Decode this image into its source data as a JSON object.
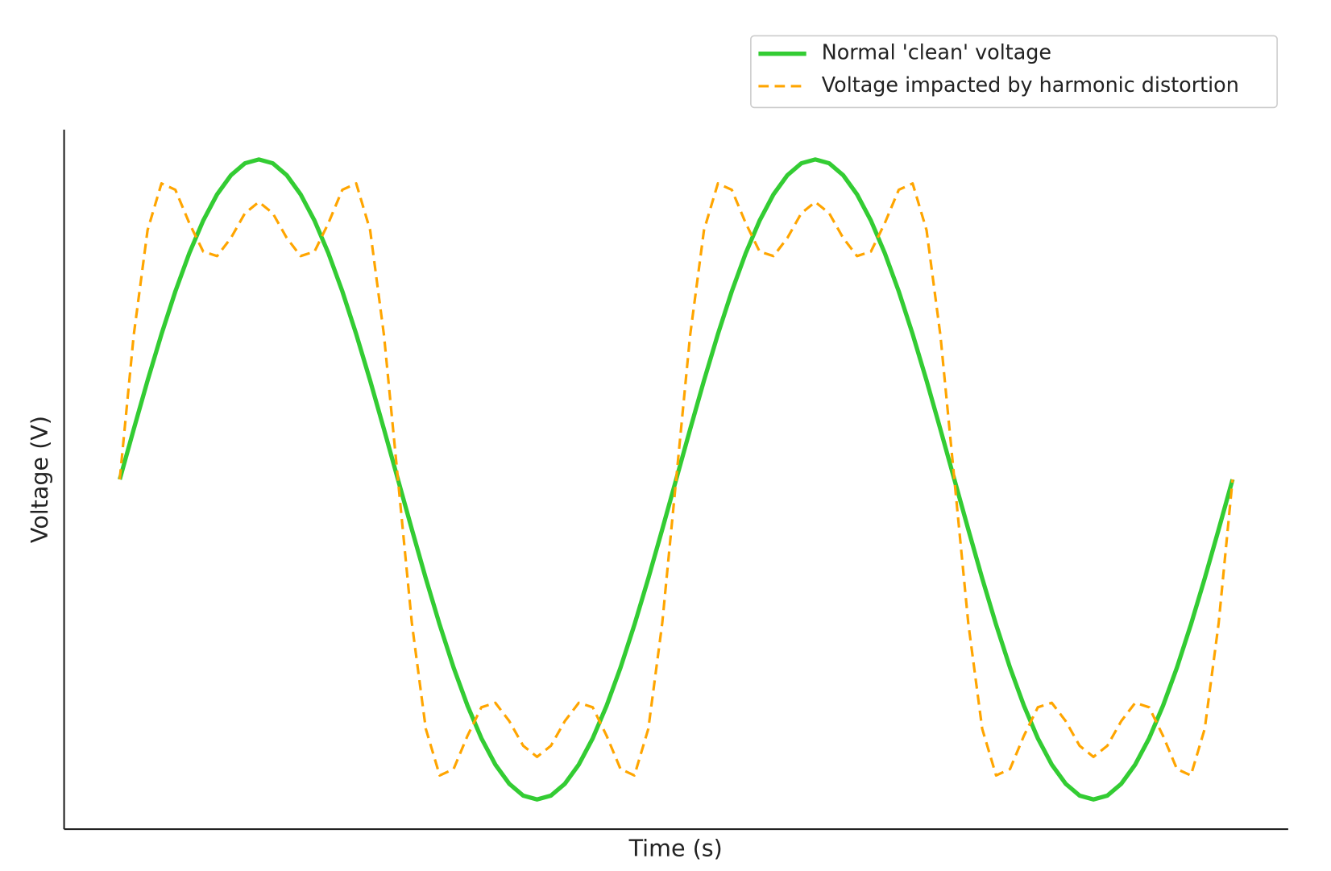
{
  "chart_data": {
    "type": "line",
    "xlabel": "Time (s)",
    "ylabel": "Voltage (V)",
    "x": [
      0,
      1,
      2,
      3,
      4,
      5,
      6,
      7,
      8,
      9,
      10,
      11,
      12,
      13,
      14,
      15,
      16,
      17,
      18,
      19,
      20,
      21,
      22,
      23,
      24,
      25,
      26,
      27,
      28,
      29,
      30,
      31,
      32,
      33,
      34,
      35,
      36,
      37,
      38,
      39,
      40,
      41,
      42,
      43,
      44,
      45,
      46,
      47,
      48,
      49,
      50,
      51,
      52,
      53,
      54,
      55,
      56,
      57,
      58,
      59,
      60,
      61,
      62,
      63,
      64,
      65,
      66,
      67,
      68,
      69,
      70,
      71,
      72,
      73,
      74,
      75,
      76,
      77,
      78,
      79,
      80
    ],
    "xlim": [
      -4,
      84
    ],
    "ylim": [
      -1.093,
      1.093
    ],
    "legend": "upper right",
    "series": [
      {
        "name": "Normal 'clean' voltage",
        "color": "#33cc33",
        "style": "solid",
        "values": [
          0,
          0.156,
          0.309,
          0.454,
          0.588,
          0.707,
          0.809,
          0.891,
          0.951,
          0.988,
          1,
          0.988,
          0.951,
          0.891,
          0.809,
          0.707,
          0.588,
          0.454,
          0.309,
          0.156,
          0,
          -0.156,
          -0.309,
          -0.454,
          -0.588,
          -0.707,
          -0.809,
          -0.891,
          -0.951,
          -0.988,
          -1,
          -0.988,
          -0.951,
          -0.891,
          -0.809,
          -0.707,
          -0.588,
          -0.454,
          -0.309,
          -0.156,
          0,
          0.156,
          0.309,
          0.454,
          0.588,
          0.707,
          0.809,
          0.891,
          0.951,
          0.988,
          1,
          0.988,
          0.951,
          0.891,
          0.809,
          0.707,
          0.588,
          0.454,
          0.309,
          0.156,
          0,
          -0.156,
          -0.309,
          -0.454,
          -0.588,
          -0.707,
          -0.809,
          -0.891,
          -0.951,
          -0.988,
          -1,
          -0.988,
          -0.951,
          -0.891,
          -0.809,
          -0.707,
          -0.588,
          -0.454,
          -0.309,
          -0.156,
          0
        ]
      },
      {
        "name": "Voltage impacted by harmonic distortion",
        "color": "#ffa500",
        "style": "dashed",
        "values": [
          0,
          0.449,
          0.779,
          0.925,
          0.905,
          0.801,
          0.712,
          0.698,
          0.755,
          0.832,
          0.867,
          0.832,
          0.755,
          0.698,
          0.712,
          0.801,
          0.905,
          0.925,
          0.779,
          0.449,
          0,
          -0.449,
          -0.779,
          -0.925,
          -0.905,
          -0.801,
          -0.712,
          -0.698,
          -0.755,
          -0.832,
          -0.867,
          -0.832,
          -0.755,
          -0.698,
          -0.712,
          -0.801,
          -0.905,
          -0.925,
          -0.779,
          -0.449,
          0,
          0.449,
          0.779,
          0.925,
          0.905,
          0.801,
          0.712,
          0.698,
          0.755,
          0.832,
          0.867,
          0.832,
          0.755,
          0.698,
          0.712,
          0.801,
          0.905,
          0.925,
          0.779,
          0.449,
          0,
          -0.449,
          -0.779,
          -0.925,
          -0.905,
          -0.801,
          -0.712,
          -0.698,
          -0.755,
          -0.832,
          -0.867,
          -0.832,
          -0.755,
          -0.698,
          -0.712,
          -0.801,
          -0.905,
          -0.925,
          -0.779,
          -0.449,
          0
        ]
      }
    ]
  }
}
